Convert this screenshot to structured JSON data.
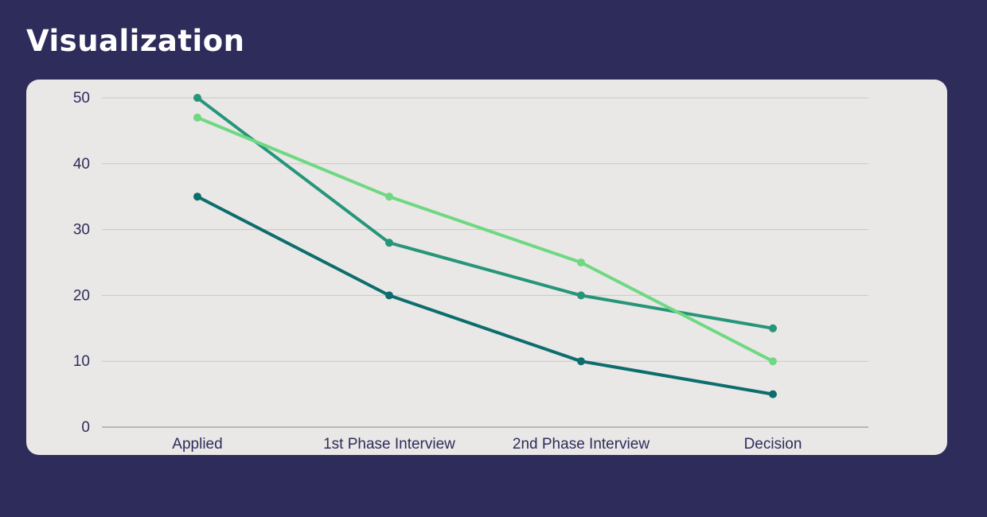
{
  "page": {
    "title": "Visualization"
  },
  "colors": {
    "background": "#2e2c5b",
    "card": "#e9e8e6",
    "grid": "#c9c8c6",
    "axis": "#a6a4b4",
    "label": "#2e2c5b"
  },
  "chart_data": {
    "type": "line",
    "title": "",
    "xlabel": "",
    "ylabel": "",
    "categories": [
      "Applied",
      "1st Phase Interview",
      "2nd Phase Interview",
      "Decision"
    ],
    "ylim": [
      0,
      50
    ],
    "yticks": [
      0,
      10,
      20,
      30,
      40,
      50
    ],
    "grid": true,
    "legend": "none",
    "series": [
      {
        "color": "#27957a",
        "values": [
          50,
          28,
          20,
          15
        ]
      },
      {
        "color": "#6fd882",
        "values": [
          47,
          35,
          25,
          10
        ]
      },
      {
        "color": "#0d6d6d",
        "values": [
          35,
          20,
          10,
          5
        ]
      }
    ]
  }
}
